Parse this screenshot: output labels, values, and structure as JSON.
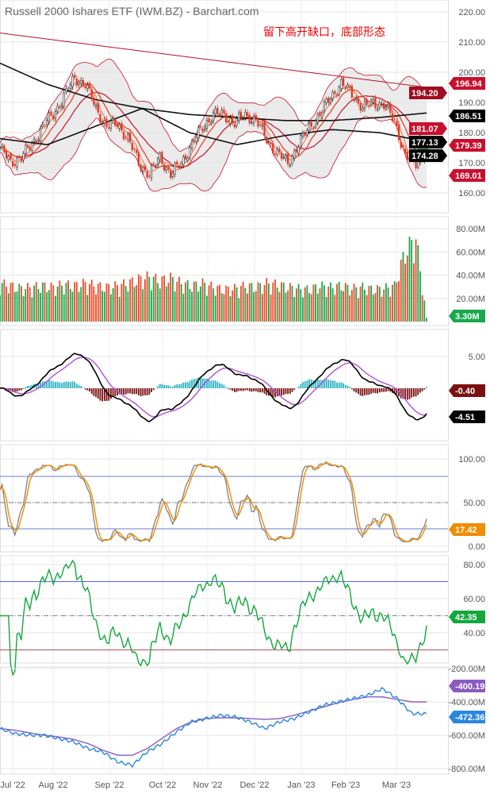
{
  "title": "Russell 2000 Ishares ETF (IWM.BZ) - Barchart.com",
  "annotation": "留下高开缺口，底部形态",
  "colors": {
    "up": "#111111",
    "down": "#e8361c",
    "vol_up": "#19a84a",
    "vol_down": "#ea4c2a",
    "bb_fill": "#e6e6e6",
    "bb_line": "#c8102e",
    "ma_red": "#b3122c",
    "macd": "#000000",
    "signal": "#b04fd6",
    "hist_pos": "#27b3c2",
    "hist_neg": "#7a1010",
    "stoch_k": "#888888",
    "stoch_d": "#f08c00",
    "rsi": "#13a83c",
    "obv": "#2a86de",
    "obv_ma": "#8a5bc0"
  },
  "chart_data": [
    {
      "type": "candlestick",
      "panel": "price",
      "x_labels": [
        "Jul '22",
        "Aug '22",
        "Sep '22",
        "Oct '22",
        "Nov '22",
        "Dec '22",
        "Jan '23",
        "Feb '23",
        "Mar '23"
      ],
      "weekly_close": [
        175,
        170,
        172,
        176,
        182,
        186,
        192,
        198,
        196,
        188,
        182,
        183,
        178,
        170,
        166,
        172,
        166,
        170,
        176,
        182,
        186,
        186,
        183,
        186,
        184,
        178,
        173,
        170,
        176,
        182,
        186,
        192,
        196,
        193,
        188,
        190,
        189,
        184,
        172,
        170,
        174
      ],
      "ma200_keypoints": [
        213,
        211,
        209,
        207,
        205,
        203,
        201,
        199,
        197,
        195
      ],
      "ma100_keypoints": [
        203,
        196,
        191,
        188,
        186,
        185,
        184,
        184,
        185,
        186.5
      ],
      "ma50_keypoints": [
        178,
        176,
        182,
        188,
        180,
        176,
        179,
        181,
        180,
        177
      ],
      "ylim": [
        160,
        220
      ],
      "yticks": [
        "220.00",
        "210.00",
        "200.00",
        "190.00",
        "180.00",
        "170.00",
        "160.00"
      ],
      "badges": [
        {
          "label": "196.94",
          "value": 196.94,
          "color": "#c8102e"
        },
        {
          "label": "194.20",
          "value": 194.2,
          "color": "#a00d22"
        },
        {
          "label": "186.51",
          "value": 186.51,
          "color": "#000000"
        },
        {
          "label": "181.07",
          "value": 181.07,
          "color": "#c8102e"
        },
        {
          "label": "179.39",
          "value": 179.39,
          "color": "#c8102e"
        },
        {
          "label": "177.13",
          "value": 177.13,
          "color": "#000000"
        },
        {
          "label": "174.28",
          "value": 174.28,
          "color": "#000000"
        },
        {
          "label": "169.01",
          "value": 169.01,
          "color": "#c8102e"
        }
      ]
    },
    {
      "type": "bar",
      "panel": "volume",
      "unit": "M",
      "weekly_volume_avg": [
        30,
        28,
        26,
        27,
        28,
        27,
        29,
        28,
        30,
        28,
        27,
        28,
        30,
        33,
        35,
        32,
        34,
        30,
        28,
        30,
        27,
        25,
        26,
        28,
        27,
        30,
        29,
        27,
        26,
        25,
        28,
        27,
        28,
        26,
        27,
        25,
        26,
        28,
        55,
        65,
        3.3
      ],
      "ylim": [
        0,
        85
      ],
      "yticks": [
        "80.00M",
        "60.00M",
        "40.00M",
        "20.00M"
      ],
      "last_label": "3.30M"
    },
    {
      "type": "line",
      "panel": "macd",
      "series": [
        "MACD",
        "Signal",
        "Histogram"
      ],
      "ylim": [
        -8.4,
        9.6
      ],
      "yticks": [
        "5.00"
      ],
      "last_labels": {
        "histogram": "-0.40",
        "macd": "-4.51"
      }
    },
    {
      "type": "line",
      "panel": "stochastic",
      "ylim": [
        0,
        100
      ],
      "yticks": [
        "100.00",
        "50.00",
        "0.00"
      ],
      "levels": [
        80,
        50,
        20
      ],
      "last_label": "17.42"
    },
    {
      "type": "line",
      "panel": "rsi",
      "ylim": [
        18,
        85
      ],
      "yticks": [
        "80.00",
        "60.00",
        "40.00"
      ],
      "levels": [
        70,
        50,
        30
      ],
      "last_label": "42.35"
    },
    {
      "type": "line",
      "panel": "obv",
      "unit": "M",
      "obv_keypoints": [
        -560,
        -590,
        -600,
        -600,
        -620,
        -640,
        -680,
        -700,
        -760,
        -780,
        -700,
        -650,
        -580,
        -520,
        -500,
        -480,
        -490,
        -520,
        -560,
        -520,
        -500,
        -460,
        -420,
        -400,
        -380,
        -360,
        -320,
        -380,
        -470,
        -472
      ],
      "obv_ma_keypoints": [
        -560,
        -570,
        -585,
        -600,
        -610,
        -625,
        -650,
        -690,
        -720,
        -720,
        -680,
        -620,
        -560,
        -520,
        -500,
        -495,
        -495,
        -500,
        -505,
        -500,
        -480,
        -455,
        -430,
        -405,
        -385,
        -370,
        -370,
        -385,
        -400,
        -400
      ],
      "ylim": [
        -830,
        -190
      ],
      "yticks": [
        "-200.00M",
        "-400.00M",
        "-600.00M",
        "-800.00M"
      ],
      "last_labels": {
        "obv_ma": "-400.19M",
        "obv": "-472.36M"
      }
    }
  ]
}
